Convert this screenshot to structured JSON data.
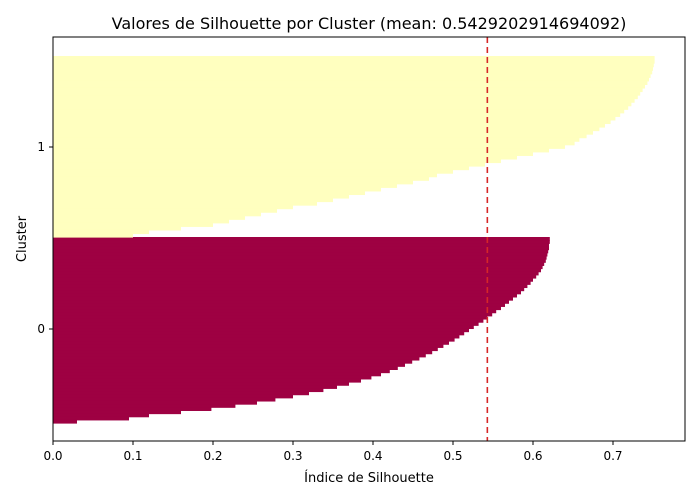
{
  "chart_data": {
    "type": "bar",
    "orientation": "horizontal",
    "title": "Valores de Silhouette por Cluster (mean: 0.5429202914694092)",
    "xlabel": "Índice de Silhouette",
    "ylabel": "Cluster",
    "xlim": [
      0,
      0.79
    ],
    "xticks": [
      0.0,
      0.1,
      0.2,
      0.3,
      0.4,
      0.5,
      0.6,
      0.7
    ],
    "xtick_labels": [
      "0.0",
      "0.1",
      "0.2",
      "0.3",
      "0.4",
      "0.5",
      "0.6",
      "0.7"
    ],
    "yticks": [
      {
        "label": "0",
        "cluster": 0
      },
      {
        "label": "1",
        "cluster": 1
      }
    ],
    "mean_line": {
      "value": 0.5429202914694092,
      "color": "#d62728",
      "style": "dashed"
    },
    "grid": false,
    "legend": "none",
    "series": [
      {
        "cluster": 0,
        "color": "#9e0142",
        "sorted_descending": true,
        "values": [
          0.621,
          0.621,
          0.62,
          0.62,
          0.619,
          0.618,
          0.617,
          0.616,
          0.614,
          0.612,
          0.61,
          0.607,
          0.604,
          0.6,
          0.597,
          0.593,
          0.589,
          0.585,
          0.58,
          0.575,
          0.57,
          0.565,
          0.56,
          0.554,
          0.549,
          0.543,
          0.538,
          0.532,
          0.526,
          0.52,
          0.514,
          0.508,
          0.502,
          0.495,
          0.488,
          0.481,
          0.474,
          0.466,
          0.458,
          0.449,
          0.44,
          0.431,
          0.421,
          0.41,
          0.398,
          0.385,
          0.37,
          0.355,
          0.338,
          0.32,
          0.3,
          0.278,
          0.255,
          0.228,
          0.198,
          0.16,
          0.12,
          0.095,
          0.03
        ]
      },
      {
        "cluster": 1,
        "color": "#ffffbf",
        "sorted_descending": true,
        "values": [
          0.752,
          0.752,
          0.751,
          0.75,
          0.749,
          0.747,
          0.745,
          0.743,
          0.74,
          0.737,
          0.734,
          0.731,
          0.727,
          0.723,
          0.719,
          0.714,
          0.709,
          0.703,
          0.697,
          0.69,
          0.683,
          0.675,
          0.667,
          0.658,
          0.652,
          0.64,
          0.62,
          0.6,
          0.58,
          0.56,
          0.54,
          0.52,
          0.5,
          0.48,
          0.47,
          0.45,
          0.43,
          0.41,
          0.39,
          0.37,
          0.35,
          0.33,
          0.3,
          0.28,
          0.26,
          0.24,
          0.22,
          0.2,
          0.16,
          0.12,
          0.1
        ]
      }
    ]
  }
}
